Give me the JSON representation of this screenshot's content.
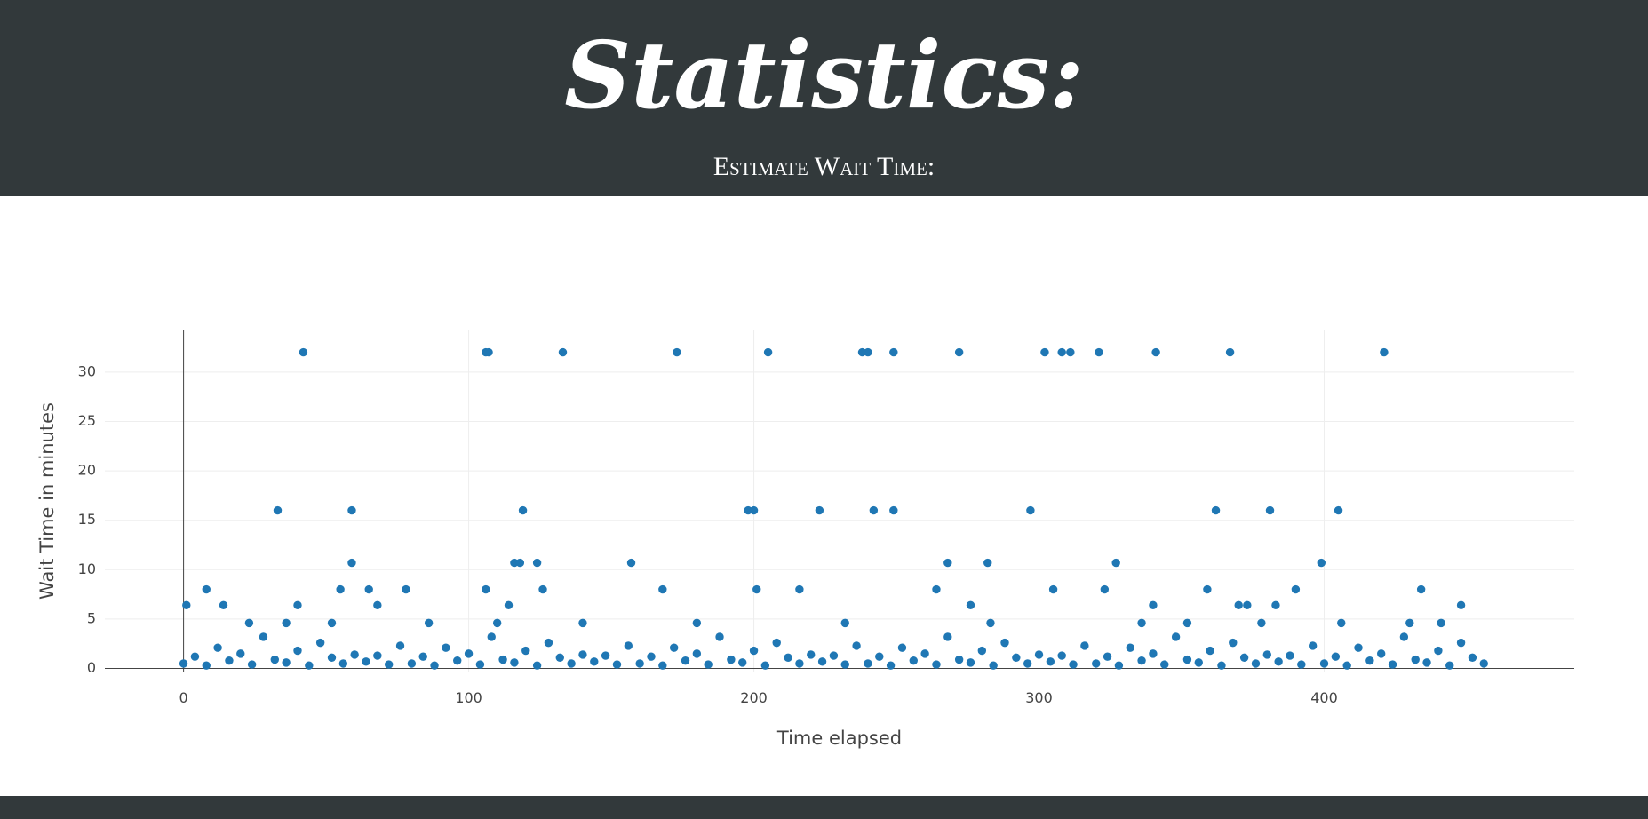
{
  "header": {
    "title": "Statistics:",
    "subtitle": "Estimate Wait Time:"
  },
  "chart_data": {
    "type": "scatter",
    "color": "#1f77b4",
    "x_label": "Time elapsed",
    "y_label": "Wait Time in minutes",
    "xlim": [
      -27.6,
      487.7
    ],
    "ylim": [
      -0.4,
      34.3
    ],
    "xticks": [
      0,
      100,
      200,
      300,
      400
    ],
    "yticks": [
      0,
      5,
      10,
      15,
      20,
      25,
      30
    ],
    "grid": true,
    "x": [
      42,
      106,
      107,
      133,
      173,
      205,
      238,
      240,
      249,
      272,
      302,
      308,
      311,
      321,
      341,
      367,
      421,
      33,
      59,
      119,
      198,
      200,
      223,
      242,
      249,
      297,
      362,
      381,
      405,
      59,
      116,
      118,
      124,
      157,
      268,
      282,
      327,
      399,
      8,
      55,
      65,
      78,
      106,
      126,
      168,
      201,
      216,
      264,
      305,
      323,
      359,
      390,
      434,
      1,
      14,
      40,
      68,
      114,
      276,
      340,
      370,
      373,
      383,
      448,
      23,
      36,
      52,
      86,
      110,
      140,
      180,
      232,
      283,
      336,
      352,
      378,
      406,
      430,
      441,
      0,
      4,
      8,
      12,
      16,
      20,
      24,
      28,
      32,
      36,
      40,
      44,
      48,
      52,
      56,
      60,
      64,
      68,
      72,
      76,
      80,
      84,
      88,
      92,
      96,
      100,
      104,
      108,
      112,
      116,
      120,
      124,
      128,
      132,
      136,
      140,
      144,
      148,
      152,
      156,
      160,
      164,
      168,
      172,
      176,
      180,
      184,
      188,
      192,
      196,
      200,
      204,
      208,
      212,
      216,
      220,
      224,
      228,
      232,
      236,
      240,
      244,
      248,
      252,
      256,
      260,
      264,
      268,
      272,
      276,
      280,
      284,
      288,
      292,
      296,
      300,
      304,
      308,
      312,
      316,
      320,
      324,
      328,
      332,
      336,
      340,
      344,
      348,
      352,
      356,
      360,
      364,
      368,
      372,
      376,
      380,
      384,
      388,
      392,
      396,
      400,
      404,
      408,
      412,
      416,
      420,
      424,
      428,
      432,
      436,
      440,
      444,
      448,
      452,
      456
    ],
    "values": [
      32,
      32,
      32,
      32,
      32,
      32,
      32,
      32,
      32,
      32,
      32,
      32,
      32,
      32,
      32,
      32,
      32,
      16,
      16,
      16,
      16,
      16,
      16,
      16,
      16,
      16,
      16,
      16,
      16,
      10.7,
      10.7,
      10.7,
      10.7,
      10.7,
      10.7,
      10.7,
      10.7,
      10.7,
      8,
      8,
      8,
      8,
      8,
      8,
      8,
      8,
      8,
      8,
      8,
      8,
      8,
      8,
      8,
      6.4,
      6.4,
      6.4,
      6.4,
      6.4,
      6.4,
      6.4,
      6.4,
      6.4,
      6.4,
      6.4,
      4.6,
      4.6,
      4.6,
      4.6,
      4.6,
      4.6,
      4.6,
      4.6,
      4.6,
      4.6,
      4.6,
      4.6,
      4.6,
      4.6,
      4.6,
      0.5,
      1.2,
      0.3,
      2.1,
      0.8,
      1.5,
      0.4,
      3.2,
      0.9,
      0.6,
      1.8,
      0.3,
      2.6,
      1.1,
      0.5,
      1.4,
      0.7,
      1.3,
      0.4,
      2.3,
      0.5,
      1.2,
      0.3,
      2.1,
      0.8,
      1.5,
      0.4,
      3.2,
      0.9,
      0.6,
      1.8,
      0.3,
      2.6,
      1.1,
      0.5,
      1.4,
      0.7,
      1.3,
      0.4,
      2.3,
      0.5,
      1.2,
      0.3,
      2.1,
      0.8,
      1.5,
      0.4,
      3.2,
      0.9,
      0.6,
      1.8,
      0.3,
      2.6,
      1.1,
      0.5,
      1.4,
      0.7,
      1.3,
      0.4,
      2.3,
      0.5,
      1.2,
      0.3,
      2.1,
      0.8,
      1.5,
      0.4,
      3.2,
      0.9,
      0.6,
      1.8,
      0.3,
      2.6,
      1.1,
      0.5,
      1.4,
      0.7,
      1.3,
      0.4,
      2.3,
      0.5,
      1.2,
      0.3,
      2.1,
      0.8,
      1.5,
      0.4,
      3.2,
      0.9,
      0.6,
      1.8,
      0.3,
      2.6,
      1.1,
      0.5,
      1.4,
      0.7,
      1.3,
      0.4,
      2.3,
      0.5,
      1.2,
      0.3,
      2.1,
      0.8,
      1.5,
      0.4,
      3.2,
      0.9,
      0.6,
      1.8,
      0.3,
      2.6,
      1.1,
      0.5
    ]
  }
}
